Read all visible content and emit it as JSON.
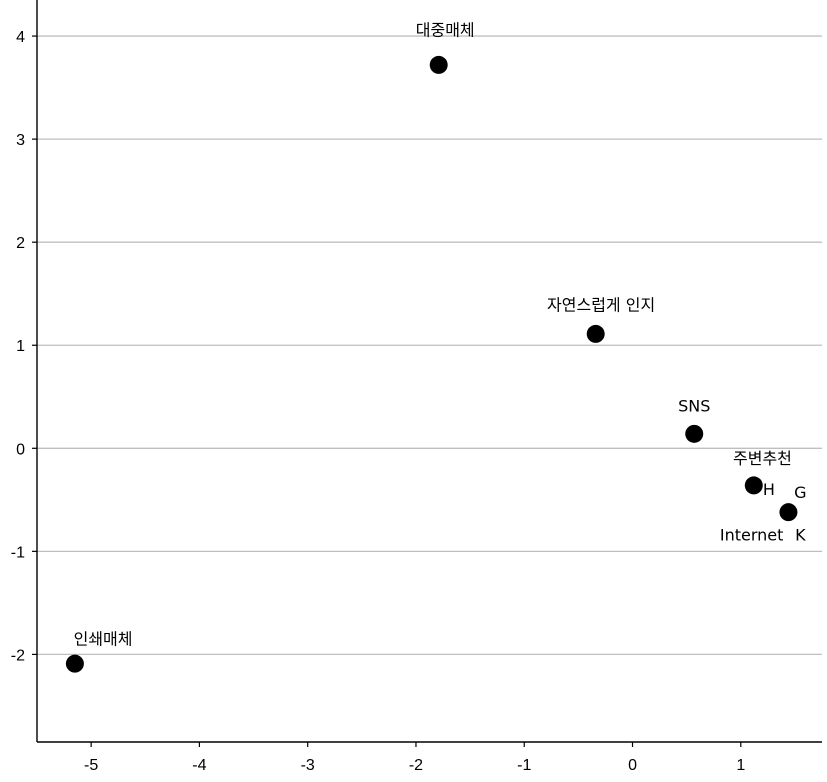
{
  "chart_data": {
    "type": "scatter",
    "xlim": [
      -5.5,
      1.75
    ],
    "ylim": [
      -2.85,
      4.35
    ],
    "xticks": [
      -5,
      -4,
      -3,
      -2,
      -1,
      0,
      1
    ],
    "yticks": [
      -2,
      -1,
      0,
      1,
      2,
      3,
      4
    ],
    "grid": "horizontal",
    "point_labels": [
      {
        "text": "대중매체",
        "x": -1.73,
        "y": 4.05
      },
      {
        "text": "자연스럽게 인지",
        "x": -0.29,
        "y": 1.38
      },
      {
        "text": "SNS",
        "x": 0.57,
        "y": 0.4
      },
      {
        "text": "주변추천",
        "x": 1.2,
        "y": -0.11
      },
      {
        "text": "H",
        "x": 1.26,
        "y": -0.41
      },
      {
        "text": "G",
        "x": 1.55,
        "y": -0.44
      },
      {
        "text": "Internet",
        "x": 1.1,
        "y": -0.85
      },
      {
        "text": "K",
        "x": 1.55,
        "y": -0.85
      },
      {
        "text": "인쇄매체",
        "x": -4.89,
        "y": -1.86
      }
    ],
    "points": [
      {
        "x": -1.79,
        "y": 3.72
      },
      {
        "x": -0.34,
        "y": 1.11
      },
      {
        "x": 0.57,
        "y": 0.14
      },
      {
        "x": 1.12,
        "y": -0.36
      },
      {
        "x": 1.44,
        "y": -0.62
      },
      {
        "x": -5.15,
        "y": -2.09
      }
    ]
  }
}
